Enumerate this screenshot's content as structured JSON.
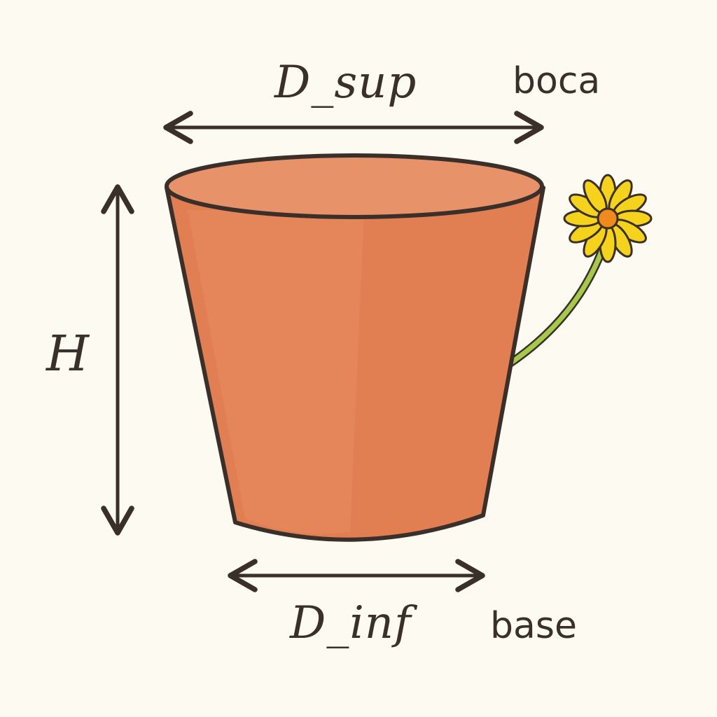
{
  "labels": {
    "top_diameter": "D_sup",
    "top_word": "boca",
    "height": "H",
    "bottom_diameter": "D_inf",
    "bottom_word": "base"
  },
  "colors": {
    "background": "#fdfaf1",
    "pot_fill": "#e27f52",
    "pot_inner": "#e8926a",
    "outline": "#3b2f2a",
    "arrow": "#3b2f2a",
    "flower_petal": "#f5d31c",
    "flower_center": "#f08a1c",
    "stem": "#a6c94a"
  }
}
